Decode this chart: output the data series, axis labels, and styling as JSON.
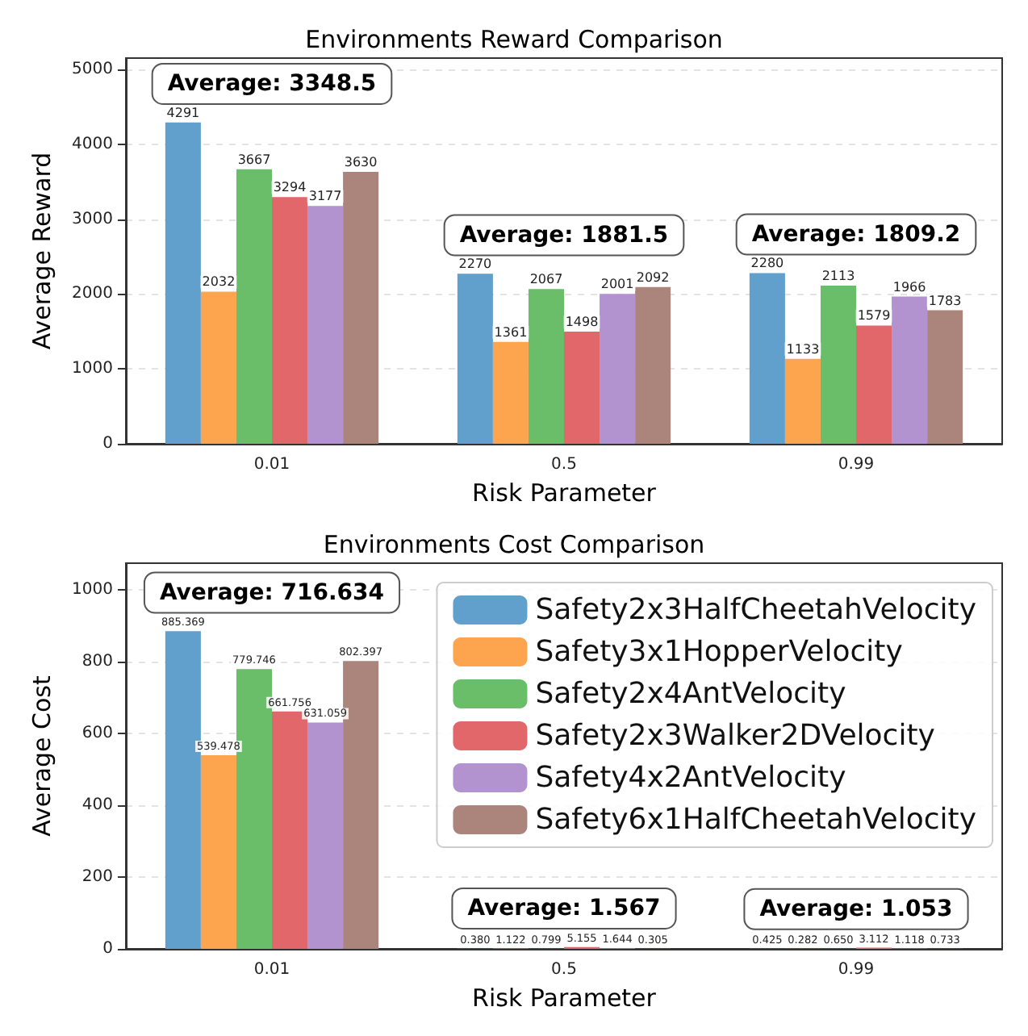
{
  "chart_data": [
    {
      "type": "bar",
      "title": "Environments Reward Comparison",
      "xlabel": "Risk Parameter",
      "ylabel": "Average Reward",
      "categories": [
        "0.01",
        "0.5",
        "0.99"
      ],
      "series": [
        {
          "color": "#61a0cd",
          "values": [
            4291,
            2270,
            2280
          ]
        },
        {
          "color": "#fda44f",
          "values": [
            2032,
            1361,
            1133
          ]
        },
        {
          "color": "#6abe6a",
          "values": [
            3667,
            2067,
            2113
          ]
        },
        {
          "color": "#e1676a",
          "values": [
            3294,
            1498,
            1579
          ]
        },
        {
          "color": "#b293d0",
          "values": [
            3177,
            2001,
            1966
          ]
        },
        {
          "color": "#ab857c",
          "values": [
            3630,
            2092,
            1783
          ]
        }
      ],
      "data_labels": true,
      "ylim": [
        0,
        5150
      ],
      "yticks": [
        0,
        1000,
        2000,
        3000,
        4000,
        5000
      ],
      "grid": "y",
      "annotations": [
        "Average: 3348.5",
        "Average: 1881.5",
        "Average: 1809.2"
      ]
    },
    {
      "type": "bar",
      "title": "Environments Cost Comparison",
      "xlabel": "Risk Parameter",
      "ylabel": "Average Cost",
      "categories": [
        "0.01",
        "0.5",
        "0.99"
      ],
      "series": [
        {
          "name": "Safety2x3HalfCheetahVelocity",
          "color": "#61a0cd",
          "values": [
            885.369,
            0.38,
            0.425
          ],
          "value_labels": [
            "885.369",
            "0.380",
            "0.425"
          ]
        },
        {
          "name": "Safety3x1HopperVelocity",
          "color": "#fda44f",
          "values": [
            539.478,
            1.122,
            0.282
          ],
          "value_labels": [
            "539.478",
            "1.122",
            "0.282"
          ]
        },
        {
          "name": "Safety2x4AntVelocity",
          "color": "#6abe6a",
          "values": [
            779.746,
            0.799,
            0.65
          ],
          "value_labels": [
            "779.746",
            "0.799",
            "0.650"
          ]
        },
        {
          "name": "Safety2x3Walker2DVelocity",
          "color": "#e1676a",
          "values": [
            661.756,
            5.155,
            3.112
          ],
          "value_labels": [
            "661.756",
            "5.155",
            "3.112"
          ]
        },
        {
          "name": "Safety4x2AntVelocity",
          "color": "#b293d0",
          "values": [
            631.059,
            1.644,
            1.118
          ],
          "value_labels": [
            "631.059",
            "1.644",
            "1.118"
          ]
        },
        {
          "name": "Safety6x1HalfCheetahVelocity",
          "color": "#ab857c",
          "values": [
            802.397,
            0.305,
            0.733
          ],
          "value_labels": [
            "802.397",
            "0.305",
            "0.733"
          ]
        }
      ],
      "ylim": [
        0,
        1075
      ],
      "yticks": [
        0,
        200,
        400,
        600,
        800,
        1000
      ],
      "grid": "y",
      "legend": "top right",
      "annotations": [
        "Average: 716.634",
        "Average: 1.567",
        "Average: 1.053"
      ]
    }
  ]
}
